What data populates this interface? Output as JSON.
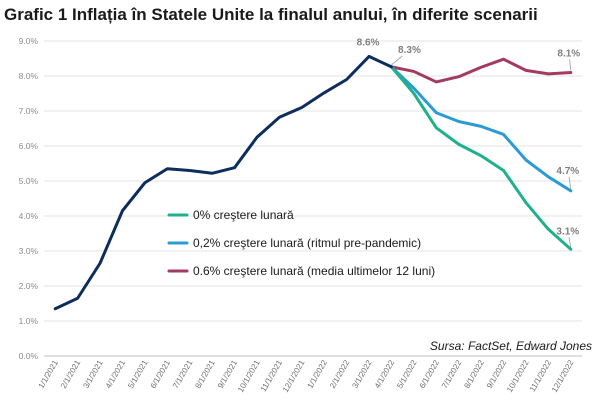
{
  "chart_data": {
    "type": "line",
    "title": "Grafic 1 Inflația în Statele Unite la finalul anului, în diferite scenarii",
    "xlabel": "",
    "ylabel": "",
    "ylim": [
      0,
      9
    ],
    "yticks": [
      "0.0%",
      "1.0%",
      "2.0%",
      "3.0%",
      "4.0%",
      "5.0%",
      "6.0%",
      "7.0%",
      "8.0%",
      "9.0%"
    ],
    "x": [
      "1/1/2021",
      "2/1/2021",
      "3/1/2021",
      "4/1/2021",
      "5/1/2021",
      "6/1/2021",
      "7/1/2021",
      "8/1/2021",
      "9/1/2021",
      "10/1/2021",
      "11/1/2021",
      "12/1/2021",
      "1/1/2022",
      "2/1/2022",
      "3/1/2022",
      "4/1/2022",
      "5/1/2022",
      "6/1/2022",
      "7/1/2022",
      "8/1/2022",
      "9/1/2022",
      "10/1/2022",
      "11/1/2022",
      "12/1/2022"
    ],
    "grid": true,
    "legend_position": "center",
    "series": [
      {
        "name": "",
        "color": "#0d2d5c",
        "values": [
          1.35,
          1.65,
          2.65,
          4.15,
          4.95,
          5.35,
          5.3,
          5.22,
          5.38,
          6.25,
          6.82,
          7.1,
          7.52,
          7.9,
          8.56,
          8.26,
          null,
          null,
          null,
          null,
          null,
          null,
          null,
          null
        ]
      },
      {
        "name": "0% creştere lunară",
        "color": "#1fb08c",
        "values": [
          null,
          null,
          null,
          null,
          null,
          null,
          null,
          null,
          null,
          null,
          null,
          null,
          null,
          null,
          null,
          8.26,
          7.5,
          6.52,
          6.05,
          5.72,
          5.3,
          4.38,
          3.62,
          3.05
        ]
      },
      {
        "name": "0,2% creştere lunară (ritmul pre-pandemic)",
        "color": "#2b9bd6",
        "values": [
          null,
          null,
          null,
          null,
          null,
          null,
          null,
          null,
          null,
          null,
          null,
          null,
          null,
          null,
          null,
          8.26,
          7.65,
          6.95,
          6.7,
          6.56,
          6.33,
          5.6,
          5.12,
          4.72
        ]
      },
      {
        "name": "0.6% creştere lunară (media ultimelor 12 luni)",
        "color": "#a33b5e",
        "values": [
          null,
          null,
          null,
          null,
          null,
          null,
          null,
          null,
          null,
          null,
          null,
          null,
          null,
          null,
          null,
          8.26,
          8.13,
          7.83,
          7.98,
          8.25,
          8.48,
          8.16,
          8.06,
          8.1
        ]
      }
    ],
    "data_labels": [
      {
        "text": "8.6%",
        "series": 0,
        "index": 14
      },
      {
        "text": "8.3%",
        "series": 0,
        "index": 15
      },
      {
        "text": "8.1%",
        "series": 3,
        "index": 23
      },
      {
        "text": "4.7%",
        "series": 2,
        "index": 23
      },
      {
        "text": "3.1%",
        "series": 1,
        "index": 23
      }
    ],
    "source": "Sursa: FactSet, Edward Jones"
  }
}
